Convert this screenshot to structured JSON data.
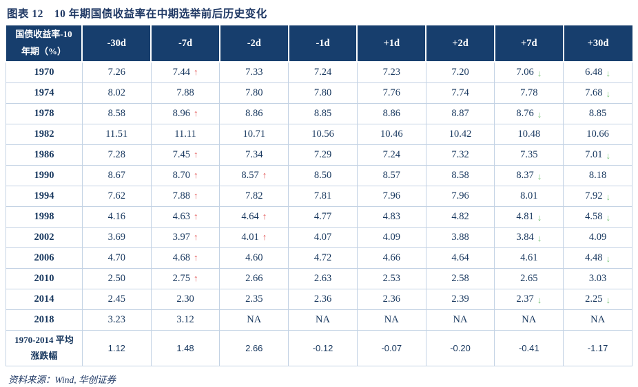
{
  "title": {
    "prefix": "图表 12",
    "text": "10 年期国债收益率在中期选举前后历史变化"
  },
  "table": {
    "corner": {
      "line1": "国债收益率-10",
      "line2": "年期（%）"
    },
    "columns": [
      "-30d",
      "-7d",
      "-2d",
      "-1d",
      "+1d",
      "+2d",
      "+7d",
      "+30d"
    ],
    "rows": [
      {
        "label": "1970",
        "cells": [
          {
            "v": "7.26"
          },
          {
            "v": "7.44",
            "a": "up"
          },
          {
            "v": "7.33"
          },
          {
            "v": "7.24"
          },
          {
            "v": "7.23"
          },
          {
            "v": "7.20"
          },
          {
            "v": "7.06",
            "a": "down"
          },
          {
            "v": "6.48",
            "a": "down"
          }
        ]
      },
      {
        "label": "1974",
        "cells": [
          {
            "v": "8.02"
          },
          {
            "v": "7.88"
          },
          {
            "v": "7.80"
          },
          {
            "v": "7.80"
          },
          {
            "v": "7.76"
          },
          {
            "v": "7.74"
          },
          {
            "v": "7.78"
          },
          {
            "v": "7.68",
            "a": "down"
          }
        ]
      },
      {
        "label": "1978",
        "cells": [
          {
            "v": "8.58"
          },
          {
            "v": "8.96",
            "a": "up"
          },
          {
            "v": "8.86"
          },
          {
            "v": "8.85"
          },
          {
            "v": "8.86"
          },
          {
            "v": "8.87"
          },
          {
            "v": "8.76",
            "a": "down"
          },
          {
            "v": "8.85"
          }
        ]
      },
      {
        "label": "1982",
        "cells": [
          {
            "v": "11.51"
          },
          {
            "v": "11.11"
          },
          {
            "v": "10.71"
          },
          {
            "v": "10.56"
          },
          {
            "v": "10.46"
          },
          {
            "v": "10.42"
          },
          {
            "v": "10.48"
          },
          {
            "v": "10.66"
          }
        ]
      },
      {
        "label": "1986",
        "cells": [
          {
            "v": "7.28"
          },
          {
            "v": "7.45",
            "a": "up"
          },
          {
            "v": "7.34"
          },
          {
            "v": "7.29"
          },
          {
            "v": "7.24"
          },
          {
            "v": "7.32"
          },
          {
            "v": "7.35"
          },
          {
            "v": "7.01",
            "a": "down"
          }
        ]
      },
      {
        "label": "1990",
        "cells": [
          {
            "v": "8.67"
          },
          {
            "v": "8.70",
            "a": "up"
          },
          {
            "v": "8.57",
            "a": "up"
          },
          {
            "v": "8.50"
          },
          {
            "v": "8.57"
          },
          {
            "v": "8.58"
          },
          {
            "v": "8.37",
            "a": "down"
          },
          {
            "v": "8.18"
          }
        ]
      },
      {
        "label": "1994",
        "cells": [
          {
            "v": "7.62"
          },
          {
            "v": "7.88",
            "a": "up"
          },
          {
            "v": "7.82"
          },
          {
            "v": "7.81"
          },
          {
            "v": "7.96"
          },
          {
            "v": "7.96"
          },
          {
            "v": "8.01"
          },
          {
            "v": "7.92",
            "a": "down"
          }
        ]
      },
      {
        "label": "1998",
        "cells": [
          {
            "v": "4.16"
          },
          {
            "v": "4.63",
            "a": "up"
          },
          {
            "v": "4.64",
            "a": "up"
          },
          {
            "v": "4.77"
          },
          {
            "v": "4.83"
          },
          {
            "v": "4.82"
          },
          {
            "v": "4.81",
            "a": "down"
          },
          {
            "v": "4.58",
            "a": "down"
          }
        ]
      },
      {
        "label": "2002",
        "cells": [
          {
            "v": "3.69"
          },
          {
            "v": "3.97",
            "a": "up"
          },
          {
            "v": "4.01",
            "a": "up"
          },
          {
            "v": "4.07"
          },
          {
            "v": "4.09"
          },
          {
            "v": "3.88"
          },
          {
            "v": "3.84",
            "a": "down"
          },
          {
            "v": "4.09"
          }
        ]
      },
      {
        "label": "2006",
        "cells": [
          {
            "v": "4.70"
          },
          {
            "v": "4.68",
            "a": "up"
          },
          {
            "v": "4.60"
          },
          {
            "v": "4.72"
          },
          {
            "v": "4.66"
          },
          {
            "v": "4.64"
          },
          {
            "v": "4.61"
          },
          {
            "v": "4.48",
            "a": "down"
          }
        ]
      },
      {
        "label": "2010",
        "cells": [
          {
            "v": "2.50"
          },
          {
            "v": "2.75",
            "a": "up"
          },
          {
            "v": "2.66"
          },
          {
            "v": "2.63"
          },
          {
            "v": "2.53"
          },
          {
            "v": "2.58"
          },
          {
            "v": "2.65"
          },
          {
            "v": "3.03"
          }
        ]
      },
      {
        "label": "2014",
        "cells": [
          {
            "v": "2.45"
          },
          {
            "v": "2.30"
          },
          {
            "v": "2.35"
          },
          {
            "v": "2.36"
          },
          {
            "v": "2.36"
          },
          {
            "v": "2.39"
          },
          {
            "v": "2.37",
            "a": "down"
          },
          {
            "v": "2.25",
            "a": "down"
          }
        ]
      },
      {
        "label": "2018",
        "cells": [
          {
            "v": "3.23"
          },
          {
            "v": "3.12"
          },
          {
            "v": "NA"
          },
          {
            "v": "NA"
          },
          {
            "v": "NA"
          },
          {
            "v": "NA"
          },
          {
            "v": "NA"
          },
          {
            "v": "NA"
          }
        ]
      },
      {
        "label": "1970-2014 平均 涨跌幅",
        "avg": true,
        "cells": [
          {
            "v": "1.12"
          },
          {
            "v": "1.48"
          },
          {
            "v": "2.66"
          },
          {
            "v": "-0.12"
          },
          {
            "v": "-0.07"
          },
          {
            "v": "-0.20"
          },
          {
            "v": "-0.41"
          },
          {
            "v": "-1.17"
          }
        ]
      }
    ]
  },
  "footer": {
    "source": "资料来源：Wind, 华创证券"
  },
  "icons": {
    "up_arrow": "↑",
    "down_arrow": "↓"
  },
  "colors": {
    "header_bg": "#173E6D",
    "navy_text": "#17375E",
    "navy_title": "#1F3864",
    "border": "#C3D2E4",
    "up": "#E25555",
    "down": "#76C476"
  }
}
